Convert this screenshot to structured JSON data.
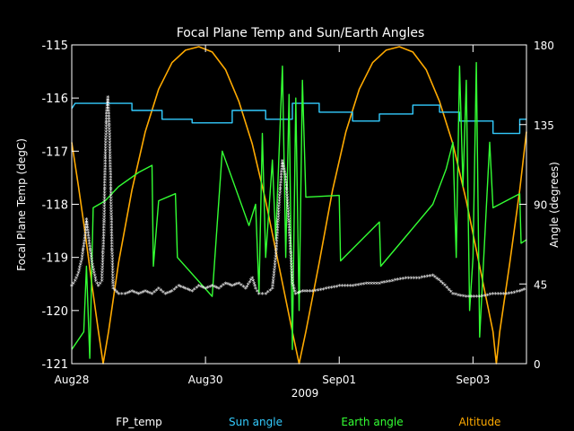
{
  "chart_data": {
    "type": "line",
    "title": "Focal Plane Temp and Sun/Earth Angles",
    "xlabel": "2009",
    "ylabel_left": "Focal Plane Temp (degC)",
    "ylabel_right": "Angle (degrees)",
    "x_range": [
      0,
      6.8
    ],
    "x_ticks": [
      {
        "x": 0,
        "label": "Aug28"
      },
      {
        "x": 2,
        "label": "Aug30"
      },
      {
        "x": 4,
        "label": "Sep01"
      },
      {
        "x": 6,
        "label": "Sep03"
      }
    ],
    "y_left_range": [
      -121,
      -115
    ],
    "y_left_ticks": [
      "-115",
      "-116",
      "-117",
      "-118",
      "-119",
      "-120",
      "-121"
    ],
    "y_right_range": [
      0,
      180
    ],
    "y_right_ticks": [
      "180",
      "135",
      "90",
      "45",
      "0"
    ],
    "legend": [
      {
        "name": "FP_temp",
        "color": "#ffffff"
      },
      {
        "name": "Sun angle",
        "color": "#33ccff"
      },
      {
        "name": "Earth angle",
        "color": "#33ff33"
      },
      {
        "name": "Altitude",
        "color": "#ffaa00"
      }
    ],
    "colors": {
      "fp_temp": "#ffffff",
      "sun": "#33ccff",
      "earth": "#33ff33",
      "altitude": "#ffaa00",
      "axes": "#ffffff",
      "background": "#000000"
    },
    "series": [
      {
        "name": "Altitude",
        "axis": "right",
        "values": [
          [
            0,
            125
          ],
          [
            0.1,
            100
          ],
          [
            0.2,
            74
          ],
          [
            0.3,
            45
          ],
          [
            0.4,
            18
          ],
          [
            0.47,
            0
          ],
          [
            0.55,
            18
          ],
          [
            0.7,
            57
          ],
          [
            0.9,
            98
          ],
          [
            1.1,
            131
          ],
          [
            1.3,
            155
          ],
          [
            1.5,
            170
          ],
          [
            1.7,
            177
          ],
          [
            1.9,
            179
          ],
          [
            2.1,
            176
          ],
          [
            2.3,
            166
          ],
          [
            2.5,
            148
          ],
          [
            2.7,
            124
          ],
          [
            2.9,
            92
          ],
          [
            3.1,
            55
          ],
          [
            3.3,
            18
          ],
          [
            3.4,
            0
          ],
          [
            3.5,
            18
          ],
          [
            3.7,
            57
          ],
          [
            3.9,
            98
          ],
          [
            4.1,
            131
          ],
          [
            4.3,
            155
          ],
          [
            4.5,
            170
          ],
          [
            4.7,
            177
          ],
          [
            4.9,
            179
          ],
          [
            5.1,
            176
          ],
          [
            5.3,
            166
          ],
          [
            5.5,
            148
          ],
          [
            5.7,
            124
          ],
          [
            5.9,
            92
          ],
          [
            6.1,
            55
          ],
          [
            6.3,
            18
          ],
          [
            6.35,
            0
          ],
          [
            6.4,
            18
          ],
          [
            6.55,
            57
          ],
          [
            6.7,
            98
          ],
          [
            6.8,
            131
          ]
        ]
      },
      {
        "name": "Sun angle",
        "axis": "right",
        "values": [
          [
            0,
            144
          ],
          [
            0.05,
            147
          ],
          [
            0.9,
            147
          ],
          [
            0.9,
            143
          ],
          [
            1.35,
            143
          ],
          [
            1.35,
            138
          ],
          [
            1.8,
            138
          ],
          [
            1.8,
            136
          ],
          [
            2.4,
            136
          ],
          [
            2.4,
            143
          ],
          [
            2.9,
            143
          ],
          [
            2.9,
            138
          ],
          [
            3.3,
            138
          ],
          [
            3.3,
            147
          ],
          [
            3.7,
            147
          ],
          [
            3.7,
            142
          ],
          [
            4.2,
            142
          ],
          [
            4.2,
            137
          ],
          [
            4.6,
            137
          ],
          [
            4.6,
            141
          ],
          [
            5.1,
            141
          ],
          [
            5.1,
            146
          ],
          [
            5.5,
            146
          ],
          [
            5.5,
            142
          ],
          [
            5.8,
            142
          ],
          [
            5.8,
            137
          ],
          [
            6.3,
            137
          ],
          [
            6.3,
            130
          ],
          [
            6.7,
            130
          ],
          [
            6.7,
            138
          ],
          [
            6.8,
            138
          ]
        ]
      },
      {
        "name": "Earth angle",
        "axis": "right",
        "values": [
          [
            0,
            8
          ],
          [
            0.18,
            18
          ],
          [
            0.22,
            55
          ],
          [
            0.27,
            3
          ],
          [
            0.32,
            88
          ],
          [
            0.5,
            92
          ],
          [
            0.7,
            100
          ],
          [
            1.0,
            108
          ],
          [
            1.2,
            112
          ],
          [
            1.22,
            55
          ],
          [
            1.3,
            92
          ],
          [
            1.55,
            96
          ],
          [
            1.58,
            60
          ],
          [
            2.1,
            38
          ],
          [
            2.25,
            120
          ],
          [
            2.65,
            78
          ],
          [
            2.75,
            90
          ],
          [
            2.8,
            40
          ],
          [
            2.85,
            130
          ],
          [
            2.9,
            60
          ],
          [
            3.0,
            115
          ],
          [
            3.05,
            70
          ],
          [
            3.15,
            168
          ],
          [
            3.2,
            60
          ],
          [
            3.25,
            152
          ],
          [
            3.3,
            8
          ],
          [
            3.35,
            150
          ],
          [
            3.4,
            30
          ],
          [
            3.45,
            160
          ],
          [
            3.5,
            94
          ],
          [
            4.0,
            95
          ],
          [
            4.02,
            58
          ],
          [
            4.6,
            80
          ],
          [
            4.62,
            55
          ],
          [
            5.0,
            72
          ],
          [
            5.4,
            90
          ],
          [
            5.6,
            110
          ],
          [
            5.7,
            125
          ],
          [
            5.75,
            60
          ],
          [
            5.8,
            168
          ],
          [
            5.85,
            100
          ],
          [
            5.9,
            160
          ],
          [
            5.95,
            30
          ],
          [
            6.0,
            60
          ],
          [
            6.05,
            170
          ],
          [
            6.1,
            15
          ],
          [
            6.25,
            125
          ],
          [
            6.3,
            88
          ],
          [
            6.7,
            96
          ],
          [
            6.72,
            68
          ],
          [
            6.8,
            70
          ]
        ]
      },
      {
        "name": "FP_temp",
        "axis": "left",
        "values": [
          [
            0,
            -119.55
          ],
          [
            0.05,
            -119.45
          ],
          [
            0.1,
            -119.3
          ],
          [
            0.15,
            -119.05
          ],
          [
            0.2,
            -118.6
          ],
          [
            0.22,
            -118.3
          ],
          [
            0.26,
            -118.7
          ],
          [
            0.3,
            -119.1
          ],
          [
            0.36,
            -119.45
          ],
          [
            0.4,
            -119.55
          ],
          [
            0.45,
            -119.45
          ],
          [
            0.48,
            -118.5
          ],
          [
            0.5,
            -117.2
          ],
          [
            0.52,
            -116.3
          ],
          [
            0.54,
            -116.0
          ],
          [
            0.56,
            -116.5
          ],
          [
            0.58,
            -117.5
          ],
          [
            0.6,
            -118.8
          ],
          [
            0.62,
            -119.6
          ],
          [
            0.7,
            -119.7
          ],
          [
            0.8,
            -119.7
          ],
          [
            0.9,
            -119.65
          ],
          [
            1.0,
            -119.7
          ],
          [
            1.1,
            -119.65
          ],
          [
            1.2,
            -119.7
          ],
          [
            1.3,
            -119.6
          ],
          [
            1.4,
            -119.7
          ],
          [
            1.5,
            -119.65
          ],
          [
            1.6,
            -119.55
          ],
          [
            1.7,
            -119.6
          ],
          [
            1.8,
            -119.65
          ],
          [
            1.9,
            -119.55
          ],
          [
            2.0,
            -119.6
          ],
          [
            2.1,
            -119.55
          ],
          [
            2.2,
            -119.6
          ],
          [
            2.3,
            -119.5
          ],
          [
            2.4,
            -119.55
          ],
          [
            2.5,
            -119.5
          ],
          [
            2.6,
            -119.6
          ],
          [
            2.7,
            -119.4
          ],
          [
            2.75,
            -119.6
          ],
          [
            2.8,
            -119.7
          ],
          [
            2.9,
            -119.7
          ],
          [
            3.0,
            -119.6
          ],
          [
            3.05,
            -119.0
          ],
          [
            3.1,
            -118.0
          ],
          [
            3.15,
            -117.2
          ],
          [
            3.2,
            -117.5
          ],
          [
            3.25,
            -118.4
          ],
          [
            3.3,
            -119.5
          ],
          [
            3.35,
            -119.7
          ],
          [
            3.45,
            -119.65
          ],
          [
            3.6,
            -119.65
          ],
          [
            3.8,
            -119.6
          ],
          [
            4.0,
            -119.55
          ],
          [
            4.2,
            -119.55
          ],
          [
            4.4,
            -119.5
          ],
          [
            4.6,
            -119.5
          ],
          [
            4.8,
            -119.45
          ],
          [
            5.0,
            -119.4
          ],
          [
            5.2,
            -119.4
          ],
          [
            5.4,
            -119.35
          ],
          [
            5.55,
            -119.5
          ],
          [
            5.7,
            -119.7
          ],
          [
            5.9,
            -119.75
          ],
          [
            6.1,
            -119.75
          ],
          [
            6.3,
            -119.7
          ],
          [
            6.5,
            -119.7
          ],
          [
            6.7,
            -119.65
          ],
          [
            6.8,
            -119.6
          ]
        ]
      }
    ]
  }
}
